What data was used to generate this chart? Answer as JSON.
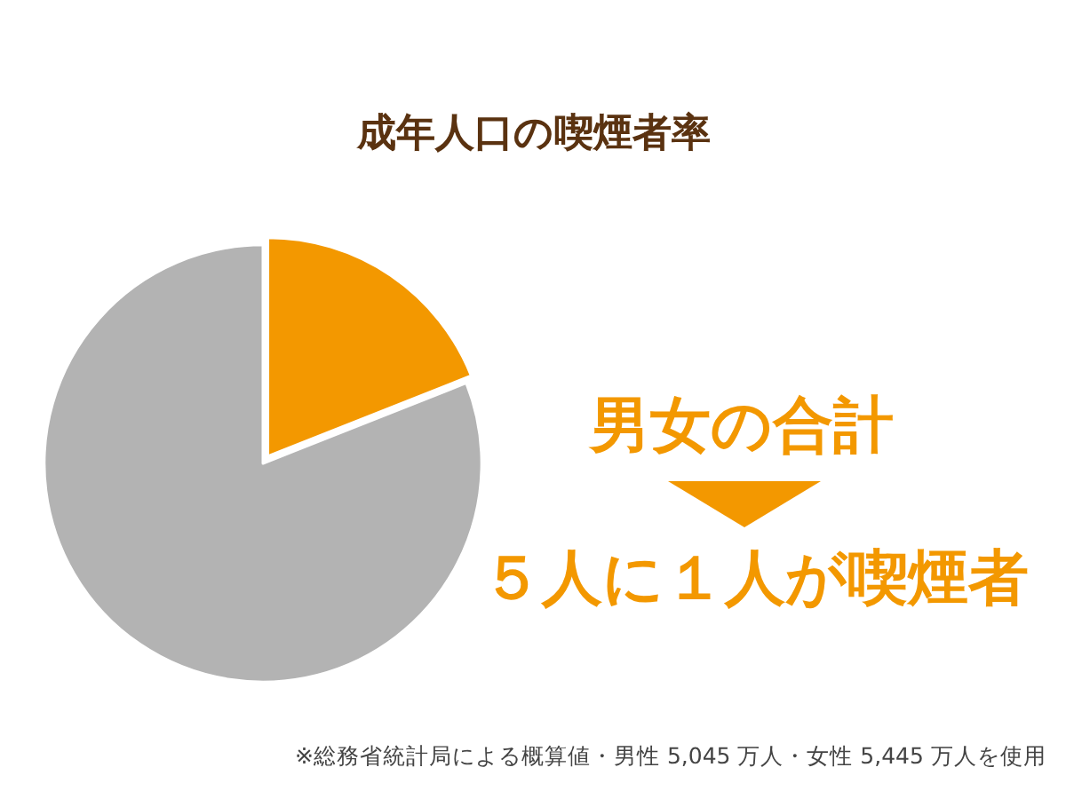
{
  "chart_data": {
    "type": "pie",
    "title": "成年人口の喫煙者率",
    "categories": [
      null,
      null
    ],
    "values": [
      19,
      81
    ],
    "colors": [
      "#f39800",
      "#b3b3b3"
    ],
    "annotations": [
      "男女の合計",
      "５人に１人が喫煙者",
      "※総務省統計局による概算値・男性 5,045 万人・女性 5,445 万人を使用"
    ]
  }
}
